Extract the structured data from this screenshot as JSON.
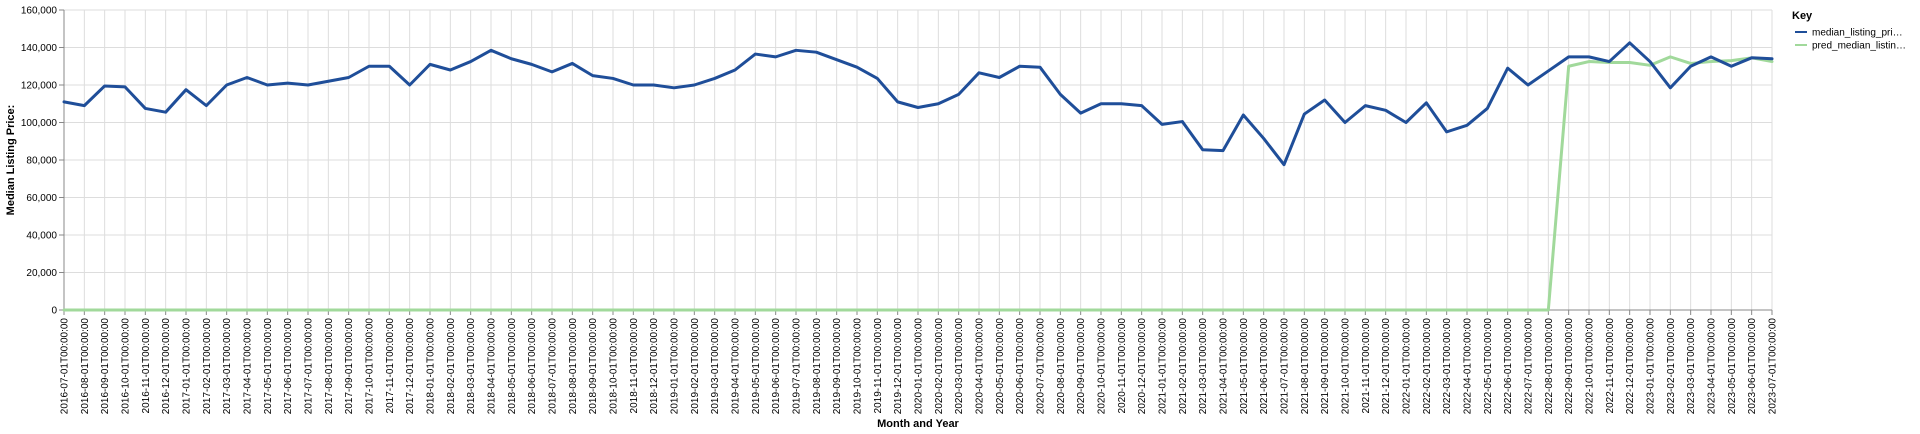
{
  "chart_data": {
    "type": "line",
    "xlabel": "Month and Year",
    "ylabel": "Median Listing Price:",
    "ylim": [
      0,
      160000
    ],
    "yticks": [
      0,
      20000,
      40000,
      60000,
      80000,
      100000,
      120000,
      140000,
      160000
    ],
    "ytick_labels": [
      "0",
      "20,000",
      "40,000",
      "60,000",
      "80,000",
      "100,000",
      "120,000",
      "140,000",
      "160,000"
    ],
    "grid": true,
    "legend": {
      "title": "Key",
      "position": "top-right"
    },
    "x": [
      "2016-07-01T00:00:00",
      "2016-08-01T00:00:00",
      "2016-09-01T00:00:00",
      "2016-10-01T00:00:00",
      "2016-11-01T00:00:00",
      "2016-12-01T00:00:00",
      "2017-01-01T00:00:00",
      "2017-02-01T00:00:00",
      "2017-03-01T00:00:00",
      "2017-04-01T00:00:00",
      "2017-05-01T00:00:00",
      "2017-06-01T00:00:00",
      "2017-07-01T00:00:00",
      "2017-08-01T00:00:00",
      "2017-09-01T00:00:00",
      "2017-10-01T00:00:00",
      "2017-11-01T00:00:00",
      "2017-12-01T00:00:00",
      "2018-01-01T00:00:00",
      "2018-02-01T00:00:00",
      "2018-03-01T00:00:00",
      "2018-04-01T00:00:00",
      "2018-05-01T00:00:00",
      "2018-06-01T00:00:00",
      "2018-07-01T00:00:00",
      "2018-08-01T00:00:00",
      "2018-09-01T00:00:00",
      "2018-10-01T00:00:00",
      "2018-11-01T00:00:00",
      "2018-12-01T00:00:00",
      "2019-01-01T00:00:00",
      "2019-02-01T00:00:00",
      "2019-03-01T00:00:00",
      "2019-04-01T00:00:00",
      "2019-05-01T00:00:00",
      "2019-06-01T00:00:00",
      "2019-07-01T00:00:00",
      "2019-08-01T00:00:00",
      "2019-09-01T00:00:00",
      "2019-10-01T00:00:00",
      "2019-11-01T00:00:00",
      "2019-12-01T00:00:00",
      "2020-01-01T00:00:00",
      "2020-02-01T00:00:00",
      "2020-03-01T00:00:00",
      "2020-04-01T00:00:00",
      "2020-05-01T00:00:00",
      "2020-06-01T00:00:00",
      "2020-07-01T00:00:00",
      "2020-08-01T00:00:00",
      "2020-09-01T00:00:00",
      "2020-10-01T00:00:00",
      "2020-11-01T00:00:00",
      "2020-12-01T00:00:00",
      "2021-01-01T00:00:00",
      "2021-02-01T00:00:00",
      "2021-03-01T00:00:00",
      "2021-04-01T00:00:00",
      "2021-05-01T00:00:00",
      "2021-06-01T00:00:00",
      "2021-07-01T00:00:00",
      "2021-08-01T00:00:00",
      "2021-09-01T00:00:00",
      "2021-10-01T00:00:00",
      "2021-11-01T00:00:00",
      "2021-12-01T00:00:00",
      "2022-01-01T00:00:00",
      "2022-02-01T00:00:00",
      "2022-03-01T00:00:00",
      "2022-04-01T00:00:00",
      "2022-05-01T00:00:00",
      "2022-06-01T00:00:00",
      "2022-07-01T00:00:00",
      "2022-08-01T00:00:00",
      "2022-09-01T00:00:00",
      "2022-10-01T00:00:00",
      "2022-11-01T00:00:00",
      "2022-12-01T00:00:00",
      "2023-01-01T00:00:00",
      "2023-02-01T00:00:00",
      "2023-03-01T00:00:00",
      "2023-04-01T00:00:00",
      "2023-05-01T00:00:00",
      "2023-06-01T00:00:00",
      "2023-07-01T00:00:00"
    ],
    "series": [
      {
        "name": "median_listing_pri…",
        "color": "#1f4e99",
        "values": [
          111000,
          109000,
          119500,
          119000,
          107500,
          105500,
          117500,
          109000,
          120000,
          124000,
          120000,
          121000,
          120000,
          122000,
          124000,
          130000,
          130000,
          120000,
          131000,
          128000,
          132500,
          138500,
          134000,
          131000,
          127000,
          131500,
          125000,
          123500,
          120000,
          120000,
          118500,
          120000,
          123500,
          128000,
          136500,
          135000,
          138500,
          137500,
          133500,
          129500,
          123500,
          111000,
          108000,
          110000,
          115000,
          126500,
          124000,
          130000,
          129500,
          115000,
          105000,
          110000,
          110000,
          109000,
          99000,
          100500,
          85500,
          85000,
          104000,
          91500,
          77500,
          104500,
          112000,
          100000,
          109000,
          106500,
          100000,
          110500,
          95000,
          98500,
          107500,
          129000,
          120000,
          127500,
          135000,
          135000,
          132500,
          142500,
          132500,
          118500,
          130000,
          135000,
          130000,
          134500,
          134000
        ]
      },
      {
        "name": "pred_median_listin…",
        "color": "#a1d99b",
        "values": [
          0,
          0,
          0,
          0,
          0,
          0,
          0,
          0,
          0,
          0,
          0,
          0,
          0,
          0,
          0,
          0,
          0,
          0,
          0,
          0,
          0,
          0,
          0,
          0,
          0,
          0,
          0,
          0,
          0,
          0,
          0,
          0,
          0,
          0,
          0,
          0,
          0,
          0,
          0,
          0,
          0,
          0,
          0,
          0,
          0,
          0,
          0,
          0,
          0,
          0,
          0,
          0,
          0,
          0,
          0,
          0,
          0,
          0,
          0,
          0,
          0,
          0,
          0,
          0,
          0,
          0,
          0,
          0,
          0,
          0,
          0,
          0,
          0,
          0,
          130000,
          132500,
          132000,
          132000,
          130500,
          135000,
          131500,
          132500,
          133000,
          134500,
          132500
        ]
      }
    ]
  }
}
